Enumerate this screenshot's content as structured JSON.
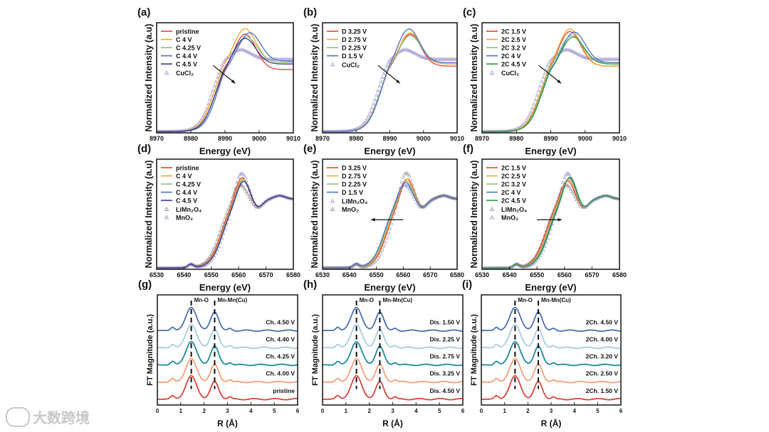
{
  "watermark": {
    "text": "大数跨境"
  },
  "chart_data": [
    {
      "id": "a",
      "type": "line",
      "panel_label": "(a)",
      "kind": "xanes-cu",
      "xlabel": "Energy (eV)",
      "ylabel": "Normalized Intensity (a.u)",
      "xlim": [
        8970,
        9010
      ],
      "ylim": [
        0,
        1.6
      ],
      "xticks": [
        8970,
        8980,
        8990,
        9000,
        9010
      ],
      "series": [
        {
          "name": "pristine",
          "color": "#e8413a",
          "edge": 8986.5,
          "peak": 8995.8,
          "peak_height": 1.42,
          "tail": 0.9
        },
        {
          "name": "C 4 V",
          "color": "#f5a623",
          "edge": 8986.3,
          "peak": 8995.8,
          "peak_height": 1.5,
          "tail": 1.0
        },
        {
          "name": "C 4.25 V",
          "color": "#8cc08c",
          "edge": 8986.8,
          "peak": 8996.2,
          "peak_height": 1.38,
          "tail": 1.0
        },
        {
          "name": "C 4.4 V",
          "color": "#4a72c0",
          "edge": 8987.4,
          "peak": 8997.2,
          "peak_height": 1.44,
          "tail": 1.02
        },
        {
          "name": "C 4.5 V",
          "color": "#3a3a8a",
          "edge": 8986.8,
          "peak": 8995.8,
          "peak_height": 1.36,
          "tail": 0.98
        }
      ],
      "references": [
        {
          "name": "CuCl₂",
          "color": "#9b8fd0",
          "marker": "triangle",
          "edge": 8986.0,
          "peak": 8994.2,
          "peak_height": 1.2,
          "tail": 1.05
        }
      ],
      "arrow": [
        [
          8986.5,
          0.98
        ],
        [
          8993,
          0.72
        ]
      ]
    },
    {
      "id": "b",
      "type": "line",
      "panel_label": "(b)",
      "kind": "xanes-cu",
      "xlabel": "Energy (eV)",
      "ylabel": "Normalized Intensity (a.u)",
      "xlim": [
        8970,
        9010
      ],
      "ylim": [
        0,
        1.6
      ],
      "xticks": [
        8970,
        8980,
        8990,
        9000,
        9010
      ],
      "series": [
        {
          "name": "D 3.25 V",
          "color": "#e8413a",
          "edge": 8986.4,
          "peak": 8996.0,
          "peak_height": 1.42,
          "tail": 0.95
        },
        {
          "name": "D 2.75 V",
          "color": "#f5a623",
          "edge": 8986.5,
          "peak": 8996.0,
          "peak_height": 1.44,
          "tail": 0.98
        },
        {
          "name": "D 2.25 V",
          "color": "#8cc08c",
          "edge": 8986.6,
          "peak": 8996.0,
          "peak_height": 1.4,
          "tail": 1.0
        },
        {
          "name": "D 1.5 V",
          "color": "#4a72c0",
          "edge": 8986.8,
          "peak": 8995.6,
          "peak_height": 1.5,
          "tail": 1.0
        }
      ],
      "references": [
        {
          "name": "CuCl₂",
          "color": "#9b8fd0",
          "marker": "triangle",
          "edge": 8986.0,
          "peak": 8994.2,
          "peak_height": 1.2,
          "tail": 1.05
        }
      ],
      "arrow": [
        [
          8986.5,
          0.98
        ],
        [
          8993,
          0.72
        ]
      ]
    },
    {
      "id": "c",
      "type": "line",
      "panel_label": "(c)",
      "kind": "xanes-cu",
      "xlabel": "Energy (eV)",
      "ylabel": "Normalized Intensity (a.u)",
      "xlim": [
        8970,
        9010
      ],
      "ylim": [
        0,
        1.6
      ],
      "xticks": [
        8970,
        8980,
        8990,
        9000,
        9010
      ],
      "series": [
        {
          "name": "2C 1.5 V",
          "color": "#e8413a",
          "edge": 8986.4,
          "peak": 8995.5,
          "peak_height": 1.46,
          "tail": 0.95
        },
        {
          "name": "2C 2.5 V",
          "color": "#f5a623",
          "edge": 8986.3,
          "peak": 8995.5,
          "peak_height": 1.5,
          "tail": 0.95
        },
        {
          "name": "2C 3.2 V",
          "color": "#8cc08c",
          "edge": 8986.8,
          "peak": 8996.0,
          "peak_height": 1.4,
          "tail": 1.0
        },
        {
          "name": "2C 4 V",
          "color": "#4a72c0",
          "edge": 8987.0,
          "peak": 8996.8,
          "peak_height": 1.45,
          "tail": 1.0
        },
        {
          "name": "2C 4.5 V",
          "color": "#2a9a3a",
          "edge": 8987.0,
          "peak": 8996.5,
          "peak_height": 1.38,
          "tail": 0.98
        }
      ],
      "references": [
        {
          "name": "CuCl₂",
          "color": "#9b8fd0",
          "marker": "triangle",
          "edge": 8986.0,
          "peak": 8994.2,
          "peak_height": 1.2,
          "tail": 1.05
        }
      ],
      "arrow": [
        [
          8986.5,
          0.98
        ],
        [
          8993,
          0.72
        ]
      ]
    },
    {
      "id": "d",
      "type": "line",
      "panel_label": "(d)",
      "kind": "xanes-mn",
      "xlabel": "Energy (eV)",
      "ylabel": "Normalized Intensity (a.u)",
      "xlim": [
        6530,
        6580
      ],
      "ylim": [
        0,
        1.6
      ],
      "xticks": [
        6530,
        6540,
        6550,
        6560,
        6570,
        6580
      ],
      "series": [
        {
          "name": "pristine",
          "color": "#e8413a",
          "edge": 6553.5,
          "peak": 6561.0,
          "peak_height": 1.35,
          "tail": 1.0
        },
        {
          "name": "C 4 V",
          "color": "#f5a623",
          "edge": 6553.8,
          "peak": 6561.3,
          "peak_height": 1.33,
          "tail": 1.0
        },
        {
          "name": "C 4.25 V",
          "color": "#8cc08c",
          "edge": 6554.0,
          "peak": 6561.5,
          "peak_height": 1.32,
          "tail": 1.0
        },
        {
          "name": "C 4.4 V",
          "color": "#4a72c0",
          "edge": 6554.1,
          "peak": 6561.5,
          "peak_height": 1.3,
          "tail": 1.0
        },
        {
          "name": "C 4.5 V",
          "color": "#3a3a8a",
          "edge": 6554.2,
          "peak": 6561.6,
          "peak_height": 1.3,
          "tail": 1.0
        }
      ],
      "references": [
        {
          "name": "LiMn₂O₄",
          "color": "#8a8a8a",
          "marker": "triangle",
          "edge": 6553.0,
          "peak": 6560.2,
          "peak_height": 1.25,
          "tail": 1.0
        },
        {
          "name": "MnO₂",
          "color": "#9b8fd0",
          "marker": "triangle",
          "edge": 6554.5,
          "peak": 6560.8,
          "peak_height": 1.45,
          "tail": 1.0
        }
      ],
      "arrow": null
    },
    {
      "id": "e",
      "type": "line",
      "panel_label": "(e)",
      "kind": "xanes-mn",
      "xlabel": "Energy (eV)",
      "ylabel": "Normalized Intensity (a.u)",
      "xlim": [
        6530,
        6580
      ],
      "ylim": [
        0,
        1.6
      ],
      "xticks": [
        6530,
        6540,
        6550,
        6560,
        6570,
        6580
      ],
      "series": [
        {
          "name": "D 3.25 V",
          "color": "#e8413a",
          "edge": 6553.8,
          "peak": 6561.3,
          "peak_height": 1.33,
          "tail": 1.0
        },
        {
          "name": "D 2.75 V",
          "color": "#f5a623",
          "edge": 6553.5,
          "peak": 6561.0,
          "peak_height": 1.33,
          "tail": 1.0
        },
        {
          "name": "D 2.25 V",
          "color": "#8cc08c",
          "edge": 6553.2,
          "peak": 6560.8,
          "peak_height": 1.3,
          "tail": 1.0
        },
        {
          "name": "D 1.5 V",
          "color": "#4a72c0",
          "edge": 6552.8,
          "peak": 6560.5,
          "peak_height": 1.28,
          "tail": 1.0
        }
      ],
      "references": [
        {
          "name": "LiMn₂O₄",
          "color": "#9b8fd0",
          "marker": "triangle",
          "edge": 6553.0,
          "peak": 6560.2,
          "peak_height": 1.25,
          "tail": 1.0
        },
        {
          "name": "MnO₂",
          "color": "#8a8a8a",
          "marker": "circle",
          "edge": 6554.5,
          "peak": 6560.8,
          "peak_height": 1.45,
          "tail": 1.0
        }
      ],
      "arrow": [
        [
          6560,
          0.72
        ],
        [
          6548,
          0.72
        ]
      ]
    },
    {
      "id": "f",
      "type": "line",
      "panel_label": "(f)",
      "kind": "xanes-mn",
      "xlabel": "Energy (eV)",
      "ylabel": "Normalized Intensity (a.u)",
      "xlim": [
        6530,
        6580
      ],
      "ylim": [
        0,
        1.6
      ],
      "xticks": [
        6530,
        6540,
        6550,
        6560,
        6570,
        6580
      ],
      "series": [
        {
          "name": "2C 1.5 V",
          "color": "#e8413a",
          "edge": 6553.0,
          "peak": 6560.8,
          "peak_height": 1.3,
          "tail": 1.0
        },
        {
          "name": "2C 2.5 V",
          "color": "#f5a623",
          "edge": 6553.4,
          "peak": 6561.2,
          "peak_height": 1.32,
          "tail": 1.0
        },
        {
          "name": "2C 3.2 V",
          "color": "#8cc08c",
          "edge": 6553.7,
          "peak": 6561.4,
          "peak_height": 1.33,
          "tail": 1.0
        },
        {
          "name": "2C 4 V",
          "color": "#4a72c0",
          "edge": 6554.0,
          "peak": 6561.6,
          "peak_height": 1.35,
          "tail": 1.0
        },
        {
          "name": "2C 4.5 V",
          "color": "#2a9a3a",
          "edge": 6554.2,
          "peak": 6561.8,
          "peak_height": 1.36,
          "tail": 1.0
        }
      ],
      "references": [
        {
          "name": "LiMn₂O₄",
          "color": "#8a8a8a",
          "marker": "triangle",
          "edge": 6553.0,
          "peak": 6560.2,
          "peak_height": 1.25,
          "tail": 1.0
        },
        {
          "name": "MnO₂",
          "color": "#9b8fd0",
          "marker": "triangle",
          "edge": 6554.5,
          "peak": 6560.8,
          "peak_height": 1.45,
          "tail": 1.0
        }
      ],
      "arrow": [
        [
          6550,
          0.72
        ],
        [
          6559,
          0.72
        ]
      ]
    },
    {
      "id": "g",
      "type": "line",
      "panel_label": "(g)",
      "kind": "ft",
      "xlabel": "R (Å)",
      "ylabel": "FT Magnitude (a.u.)",
      "xlim": [
        0,
        6
      ],
      "ylim": [
        -0.2,
        4.3
      ],
      "xticks": [
        0,
        1,
        2,
        3,
        4,
        5,
        6
      ],
      "peak_labels": [
        "Mn-O",
        "Mn-Mn(Cu)"
      ],
      "peak_positions": [
        1.45,
        2.45
      ],
      "series": [
        {
          "name": "Ch. 4.50 V",
          "color": "#4a6fb5",
          "offset": 2.8,
          "first_shell": 1.0,
          "second_shell": 0.85
        },
        {
          "name": "Ch. 4.40 V",
          "color": "#a8cce0",
          "offset": 2.1,
          "first_shell": 1.0,
          "second_shell": 0.85
        },
        {
          "name": "Ch. 4.25 V",
          "color": "#1f8a9a",
          "offset": 1.4,
          "first_shell": 1.0,
          "second_shell": 0.85
        },
        {
          "name": "Ch. 4.00 V",
          "color": "#f4a07a",
          "offset": 0.7,
          "first_shell": 1.0,
          "second_shell": 0.8
        },
        {
          "name": "pristine",
          "color": "#d9453a",
          "offset": 0.0,
          "first_shell": 1.0,
          "second_shell": 0.8
        }
      ]
    },
    {
      "id": "h",
      "type": "line",
      "panel_label": "(h)",
      "kind": "ft",
      "xlabel": "R (Å)",
      "ylabel": "FT Magnitude (a.u.)",
      "xlim": [
        0,
        6
      ],
      "ylim": [
        -0.2,
        4.3
      ],
      "xticks": [
        0,
        1,
        2,
        3,
        4,
        5,
        6
      ],
      "peak_labels": [
        "Mn-O",
        "Mn-Mn(Cu)"
      ],
      "peak_positions": [
        1.45,
        2.45
      ],
      "series": [
        {
          "name": "Dis. 1.50 V",
          "color": "#4a6fb5",
          "offset": 2.8,
          "first_shell": 1.0,
          "second_shell": 0.85
        },
        {
          "name": "Dis. 2.25 V",
          "color": "#a8cce0",
          "offset": 2.1,
          "first_shell": 1.0,
          "second_shell": 0.85
        },
        {
          "name": "Dis. 2.75 V",
          "color": "#1f8a9a",
          "offset": 1.4,
          "first_shell": 1.0,
          "second_shell": 0.85
        },
        {
          "name": "Dis. 3.25 V",
          "color": "#f4a07a",
          "offset": 0.7,
          "first_shell": 1.0,
          "second_shell": 0.8
        },
        {
          "name": "Dis. 4.50 V",
          "color": "#d9453a",
          "offset": 0.0,
          "first_shell": 1.0,
          "second_shell": 0.8
        }
      ]
    },
    {
      "id": "i",
      "type": "line",
      "panel_label": "(i)",
      "kind": "ft",
      "xlabel": "R (Å)",
      "ylabel": "FT Magnitude (a.u.)",
      "xlim": [
        0,
        6
      ],
      "ylim": [
        -0.2,
        4.3
      ],
      "xticks": [
        0,
        1,
        2,
        3,
        4,
        5,
        6
      ],
      "peak_labels": [
        "Mn-O",
        "Mn-Mn(Cu)"
      ],
      "peak_positions": [
        1.45,
        2.45
      ],
      "series": [
        {
          "name": "2Ch. 4.50 V",
          "color": "#4a6fb5",
          "offset": 2.8,
          "first_shell": 1.0,
          "second_shell": 0.85
        },
        {
          "name": "2Ch. 4.00 V",
          "color": "#a8cce0",
          "offset": 2.1,
          "first_shell": 1.0,
          "second_shell": 0.85
        },
        {
          "name": "2Ch. 3.20 V",
          "color": "#1f8a9a",
          "offset": 1.4,
          "first_shell": 1.0,
          "second_shell": 0.85
        },
        {
          "name": "2Ch. 2.50 V",
          "color": "#f4a07a",
          "offset": 0.7,
          "first_shell": 1.0,
          "second_shell": 0.8
        },
        {
          "name": "2Ch. 1.50 V",
          "color": "#d9453a",
          "offset": 0.0,
          "first_shell": 1.0,
          "second_shell": 0.8
        }
      ]
    }
  ]
}
